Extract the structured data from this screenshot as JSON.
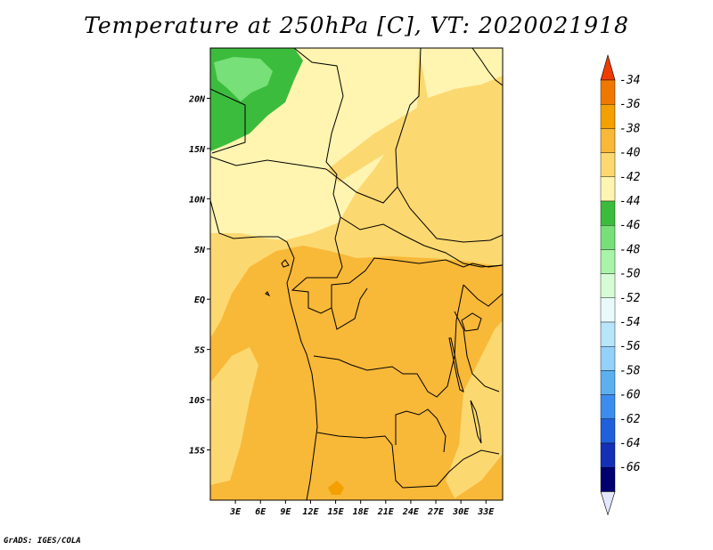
{
  "title": "Temperature at 250hPa [C], VT: 2020021918",
  "footer": "GrADS: IGES/COLA",
  "map": {
    "lon_range": [
      0,
      35
    ],
    "lat_range": [
      -20,
      25
    ],
    "lat_ticks": [
      {
        "value": 20,
        "label": "20N"
      },
      {
        "value": 15,
        "label": "15N"
      },
      {
        "value": 10,
        "label": "10N"
      },
      {
        "value": 5,
        "label": "5N"
      },
      {
        "value": 0,
        "label": "EQ"
      },
      {
        "value": -5,
        "label": "5S"
      },
      {
        "value": -10,
        "label": "10S"
      },
      {
        "value": -15,
        "label": "15S"
      }
    ],
    "lon_ticks": [
      {
        "value": 3,
        "label": "3E"
      },
      {
        "value": 6,
        "label": "6E"
      },
      {
        "value": 9,
        "label": "9E"
      },
      {
        "value": 12,
        "label": "12E"
      },
      {
        "value": 15,
        "label": "15E"
      },
      {
        "value": 18,
        "label": "18E"
      },
      {
        "value": 21,
        "label": "21E"
      },
      {
        "value": 24,
        "label": "24E"
      },
      {
        "value": 27,
        "label": "27E"
      },
      {
        "value": 30,
        "label": "30E"
      },
      {
        "value": 33,
        "label": "33E"
      }
    ]
  },
  "colorbar": {
    "levels": [
      {
        "label": "-34",
        "color": "#f07800"
      },
      {
        "label": "-36",
        "color": "#f4a000"
      },
      {
        "label": "-38",
        "color": "#f8b838"
      },
      {
        "label": "-40",
        "color": "#fcd870"
      },
      {
        "label": "-42",
        "color": "#fff4b0"
      },
      {
        "label": "-44",
        "color": "#3cbc3c"
      },
      {
        "label": "-46",
        "color": "#78e078"
      },
      {
        "label": "-48",
        "color": "#a8f4a8"
      },
      {
        "label": "-50",
        "color": "#d6fcd6"
      },
      {
        "label": "-52",
        "color": "#e8fafc"
      },
      {
        "label": "-54",
        "color": "#b8e4fc"
      },
      {
        "label": "-56",
        "color": "#94d0f8"
      },
      {
        "label": "-58",
        "color": "#5cb0f0"
      },
      {
        "label": "-60",
        "color": "#3c8cf0"
      },
      {
        "label": "-62",
        "color": "#2060dc"
      },
      {
        "label": "-64",
        "color": "#1430b8"
      },
      {
        "label": "-66",
        "color": "#000070"
      }
    ],
    "top_arrow_color": "#f03c00",
    "bottom_arrow_color": "#e4e8fc"
  },
  "fill_colors": {
    "green_dark": "#3cbc3c",
    "green_light": "#78e078",
    "pale_yellow": "#fff4b0",
    "yellow": "#fcd870",
    "orange": "#f8b838",
    "dark_orange": "#f4a000"
  }
}
